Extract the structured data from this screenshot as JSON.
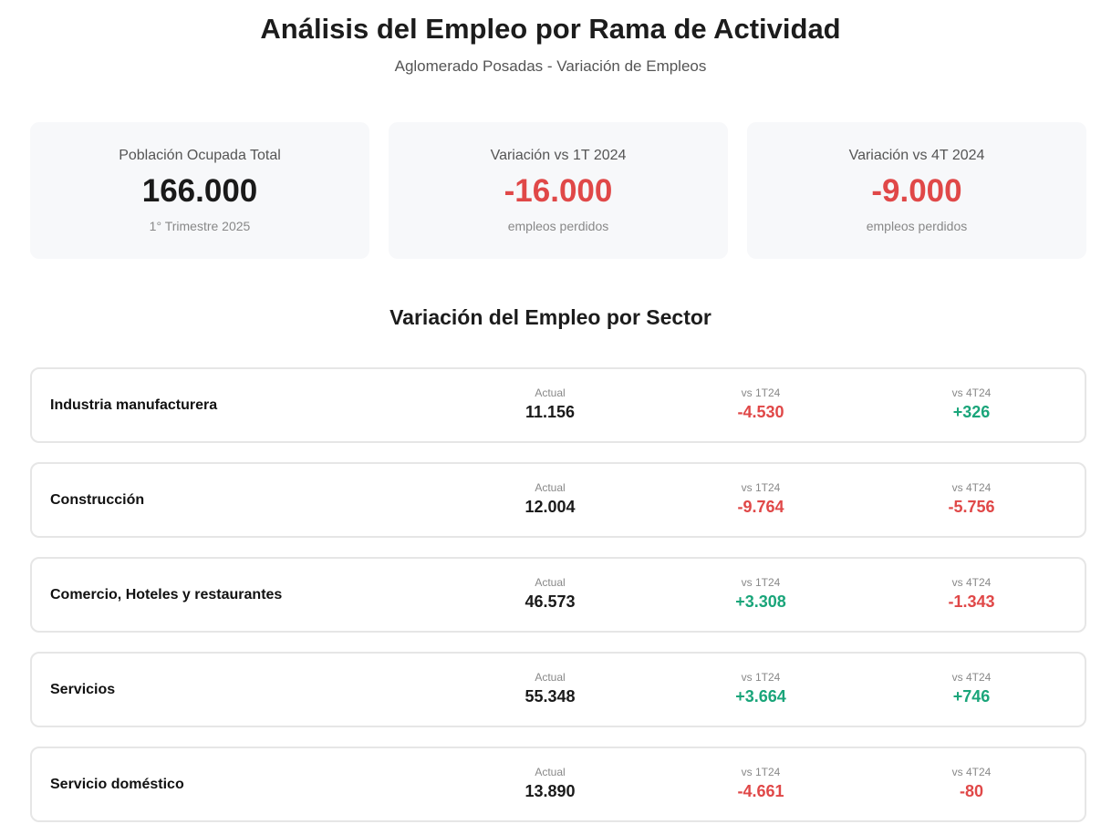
{
  "header": {
    "title": "Análisis del Empleo por Rama de Actividad",
    "subtitle": "Aglomerado Posadas - Variación de Empleos"
  },
  "kpis": [
    {
      "label": "Población Ocupada Total",
      "value": "166.000",
      "note": "1° Trimestre 2025",
      "tone": "neutral"
    },
    {
      "label": "Variación vs 1T 2024",
      "value": "-16.000",
      "note": "empleos perdidos",
      "tone": "neg"
    },
    {
      "label": "Variación vs 4T 2024",
      "value": "-9.000",
      "note": "empleos perdidos",
      "tone": "neg"
    }
  ],
  "section": {
    "title": "Variación del Empleo por Sector"
  },
  "columns": {
    "actual": "Actual",
    "vs1": "vs 1T24",
    "vs4": "vs 4T24"
  },
  "colors": {
    "negative": "#e04848",
    "positive": "#1aa57a"
  },
  "sectors": [
    {
      "name": "Industria manufacturera",
      "actual": "11.156",
      "vs1": "-4.530",
      "vs4": "+326"
    },
    {
      "name": "Construcción",
      "actual": "12.004",
      "vs1": "-9.764",
      "vs4": "-5.756"
    },
    {
      "name": "Comercio, Hoteles y restaurantes",
      "actual": "46.573",
      "vs1": "+3.308",
      "vs4": "-1.343"
    },
    {
      "name": "Servicios",
      "actual": "55.348",
      "vs1": "+3.664",
      "vs4": "+746"
    },
    {
      "name": "Servicio doméstico",
      "actual": "13.890",
      "vs1": "-4.661",
      "vs4": "-80"
    }
  ]
}
